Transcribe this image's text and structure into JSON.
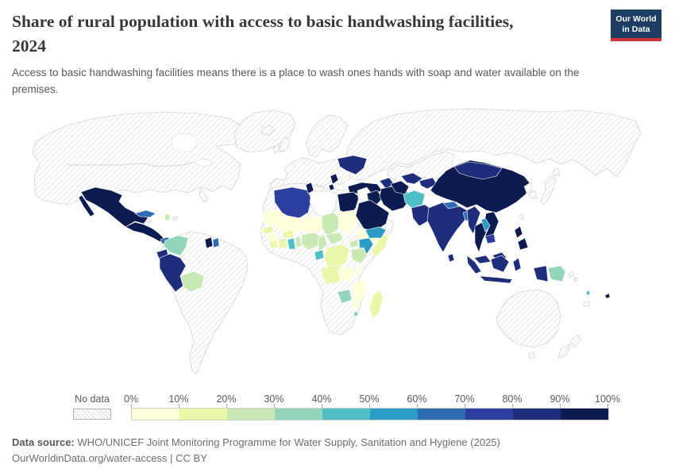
{
  "header": {
    "title_line1": "Share of rural population with access to basic handwashing facilities,",
    "title_line2": "2024",
    "subtitle": "Access to basic handwashing facilities means there is a place to wash ones hands with soap and water available on the premises."
  },
  "logo": {
    "line1": "Our World",
    "line2": "in Data",
    "bg_color": "#1d3d63",
    "accent_color": "#d13438"
  },
  "legend": {
    "no_data_label": "No data",
    "tick_labels": [
      "0%",
      "10%",
      "20%",
      "30%",
      "40%",
      "50%",
      "60%",
      "70%",
      "80%",
      "90%",
      "100%"
    ]
  },
  "footer": {
    "source_label": "Data source:",
    "source_text": " WHO/UNICEF Joint Monitoring Programme for Water Supply, Sanitation and Hygiene (2025)",
    "license_text": "OurWorldinData.org/water-access | CC BY"
  },
  "chart_data": {
    "type": "choropleth_map",
    "title": "Share of rural population with access to basic handwashing facilities, 2024",
    "unit": "share of rural population (%)",
    "no_data_label": "No data",
    "buckets": [
      "0-10%",
      "10-20%",
      "20-30%",
      "30-40%",
      "40-50%",
      "50-60%",
      "60-70%",
      "70-80%",
      "80-90%",
      "90-100%"
    ],
    "bucket_colors": [
      "#ffffd9",
      "#eaf7a9",
      "#c9e9b4",
      "#93d5b9",
      "#4fbfc6",
      "#2a9cc6",
      "#2e6db4",
      "#2c3e9e",
      "#1f2d7d",
      "#0d1c50"
    ],
    "entities": {
      "Canada": "No data",
      "United States": "No data",
      "Greenland": "No data",
      "Iceland": "No data",
      "Mexico": "90-100%",
      "Guatemala": "90-100%",
      "Honduras": "90-100%",
      "Nicaragua": "90-100%",
      "Costa Rica": "90-100%",
      "Panama": "60-70%",
      "Cuba": "60-70%",
      "Haiti": "0-10%",
      "Dominican Republic": "20-30%",
      "Jamaica": "No data",
      "Puerto Rico": "No data",
      "Colombia": "30-40%",
      "Venezuela": "No data",
      "Guyana": "90-100%",
      "Suriname": "60-70%",
      "Ecuador": "80-90%",
      "Peru": "80-90%",
      "Bolivia": "20-30%",
      "Brazil": "No data",
      "Paraguay": "No data",
      "Chile": "No data",
      "Argentina": "No data",
      "Uruguay": "No data",
      "United Kingdom": "No data",
      "Ireland": "No data",
      "Norway": "No data",
      "Sweden": "No data",
      "Finland": "No data",
      "France": "No data",
      "Germany": "No data",
      "Spain": "No data",
      "Italy": "No data",
      "Poland": "No data",
      "Ukraine": "80-90%",
      "Serbia": "90-100%",
      "Albania": "90-100%",
      "Turkey": "90-100%",
      "Azerbaijan": "80-90%",
      "Russia": "No data",
      "Kazakhstan": "No data",
      "Morocco": "No data",
      "Western Sahara": "No data",
      "Algeria": "70-80%",
      "Tunisia": "90-100%",
      "Libya": "No data",
      "Egypt": "90-100%",
      "Mauritania": "0-10%",
      "Mali": "0-10%",
      "Niger": "0-10%",
      "Chad": "20-30%",
      "Sudan": "0-10%",
      "South Sudan": "No data",
      "Eritrea": "0-10%",
      "Djibouti": "40-50%",
      "Ethiopia": "0-10%",
      "Somalia": "10-20%",
      "Senegal": "10-20%",
      "Guinea": "0-10%",
      "Sierra Leone": "10-20%",
      "Liberia": "10-20%",
      "Cote d'Ivoire": "10-20%",
      "Burkina Faso": "10-20%",
      "Ghana": "40-50%",
      "Togo": "20-30%",
      "Benin": "10-20%",
      "Nigeria": "20-30%",
      "Cameroon": "20-30%",
      "Central African Republic": "20-30%",
      "Gabon": "40-50%",
      "Congo": "0-10%",
      "Democratic Republic of Congo": "10-20%",
      "Uganda": "20-30%",
      "Kenya": "50-60%",
      "Tanzania": "20-30%",
      "Angola": "10-20%",
      "Zambia": "0-10%",
      "Malawi": "0-10%",
      "Zimbabwe": "30-40%",
      "Mozambique": "0-10%",
      "Madagascar": "10-20%",
      "Eswatini": "30-40%",
      "Namibia": "No data",
      "Botswana": "No data",
      "South Africa": "No data",
      "Syria": "No data",
      "Iraq": "90-100%",
      "Iran": "90-100%",
      "Saudi Arabia": "90-100%",
      "Yemen": "50-60%",
      "Oman": "No data",
      "United Arab Emirates": "No data",
      "Turkmenistan": "90-100%",
      "Uzbekistan": "80-90%",
      "Kyrgyzstan": "80-90%",
      "Tajikistan": "80-90%",
      "Afghanistan": "40-50%",
      "Pakistan": "80-90%",
      "India": "80-90%",
      "Nepal": "60-70%",
      "Bangladesh": "60-70%",
      "Sri Lanka": "80-90%",
      "China": "90-100%",
      "Mongolia": "80-90%",
      "North Korea": "No data",
      "South Korea": "No data",
      "Japan": "No data",
      "Taiwan": "No data",
      "Myanmar": "80-90%",
      "Thailand": "90-100%",
      "Laos": "50-60%",
      "Vietnam": "90-100%",
      "Cambodia": "70-80%",
      "Malaysia": "80-90%",
      "Indonesia": "80-90%",
      "Philippines": "90-100%",
      "Papua New Guinea": "30-40%",
      "Solomon Islands": "No data",
      "Vanuatu": "40-50%",
      "New Caledonia": "No data",
      "Fiji": "90-100%",
      "Australia": "No data",
      "New Zealand": "No data"
    }
  }
}
